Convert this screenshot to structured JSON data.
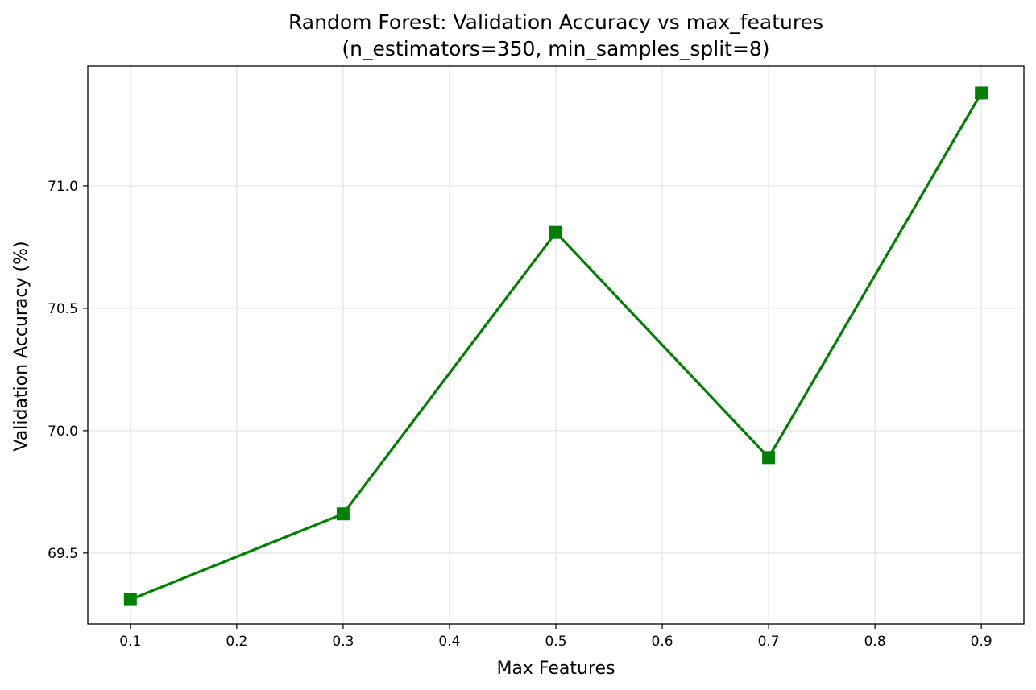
{
  "chart_data": {
    "type": "line",
    "title": "Random Forest: Validation Accuracy vs max_features",
    "subtitle": "(n_estimators=350, min_samples_split=8)",
    "xlabel": "Max Features",
    "ylabel": "Validation Accuracy (%)",
    "x": [
      0.1,
      0.3,
      0.5,
      0.7,
      0.9
    ],
    "series": [
      {
        "values": [
          69.31,
          69.66,
          70.81,
          69.89,
          71.38
        ],
        "color": "#008000",
        "marker": "square"
      }
    ],
    "xlim": [
      0.06,
      0.94
    ],
    "ylim": [
      69.21,
      71.49
    ],
    "xticks": [
      0.1,
      0.2,
      0.3,
      0.4,
      0.5,
      0.6,
      0.7,
      0.8,
      0.9
    ],
    "xtick_labels": [
      "0.1",
      "0.2",
      "0.3",
      "0.4",
      "0.5",
      "0.6",
      "0.7",
      "0.8",
      "0.9"
    ],
    "yticks": [
      69.5,
      70.0,
      70.5,
      71.0
    ],
    "ytick_labels": [
      "69.5",
      "70.0",
      "70.5",
      "71.0"
    ],
    "grid": true
  }
}
